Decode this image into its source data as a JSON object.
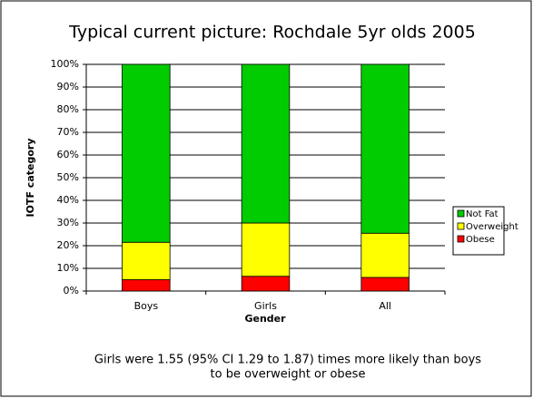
{
  "chart_data": {
    "type": "stacked_bar_100",
    "title": "Typical current picture: Rochdale 5yr olds 2005",
    "x_label": "Gender",
    "y_label": "IOTF category",
    "categories": [
      "Boys",
      "Girls",
      "All"
    ],
    "series": [
      {
        "name": "Obese",
        "color": "#ff0000",
        "values": [
          5,
          6.5,
          6
        ]
      },
      {
        "name": "Overweight",
        "color": "#ffff00",
        "values": [
          16.5,
          23.5,
          19.5
        ]
      },
      {
        "name": "Not Fat",
        "color": "#00cc00",
        "values": [
          78.5,
          70,
          74.5
        ]
      }
    ],
    "ylim": [
      0,
      100
    ],
    "yticks": [
      {
        "value": 0,
        "label": "0%"
      },
      {
        "value": 10,
        "label": "10%"
      },
      {
        "value": 20,
        "label": "20%"
      },
      {
        "value": 30,
        "label": "30%"
      },
      {
        "value": 40,
        "label": "40%"
      },
      {
        "value": 50,
        "label": "50%"
      },
      {
        "value": 60,
        "label": "60%"
      },
      {
        "value": 70,
        "label": "70%"
      },
      {
        "value": 80,
        "label": "80%"
      },
      {
        "value": 90,
        "label": "90%"
      },
      {
        "value": 100,
        "label": "100%"
      }
    ],
    "grid": true,
    "legend": "right",
    "annotations": [
      "Girls were 1.55 (95% CI 1.29 to 1.87) times more likely than boys",
      "to be overweight or obese"
    ]
  }
}
